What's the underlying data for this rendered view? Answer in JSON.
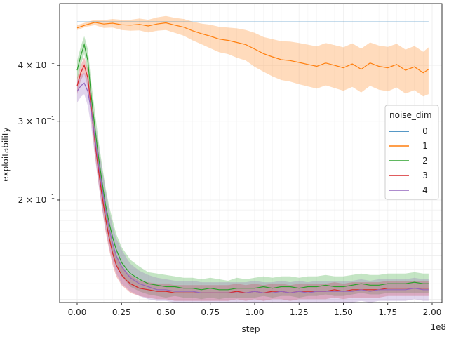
{
  "chart_data": {
    "type": "line",
    "xlabel": "step",
    "ylabel": "exploitability",
    "x_offset_label": "1e8",
    "x_scale": 100000000,
    "xlim": [
      -0.05,
      2.0
    ],
    "ylim": [
      0.118,
      0.55
    ],
    "yscale": "log",
    "grid": true,
    "x_ticks": [
      0.0,
      0.25,
      0.5,
      0.75,
      1.0,
      1.25,
      1.5,
      1.75,
      2.0
    ],
    "x_tick_labels": [
      "0.00",
      "0.25",
      "0.50",
      "0.75",
      "1.00",
      "1.25",
      "1.50",
      "1.75",
      "2.00"
    ],
    "y_ticks": [
      {
        "value": 0.4,
        "mantissa": "4",
        "exp": "−1"
      },
      {
        "value": 0.3,
        "mantissa": "3",
        "exp": "−1"
      },
      {
        "value": 0.2,
        "mantissa": "2",
        "exp": "−1"
      }
    ],
    "legend": {
      "title": "noise_dim",
      "placement": "right"
    },
    "series": [
      {
        "name": "0",
        "color": "#1f77b4",
        "x": [
          0.0,
          1.98
        ],
        "y": [
          0.5,
          0.5
        ],
        "lower": [
          0.5,
          0.5
        ],
        "upper": [
          0.5,
          0.5
        ]
      },
      {
        "name": "1",
        "color": "#ff7f0e",
        "x": [
          0.0,
          0.05,
          0.1,
          0.15,
          0.2,
          0.25,
          0.3,
          0.35,
          0.4,
          0.45,
          0.5,
          0.55,
          0.6,
          0.65,
          0.7,
          0.75,
          0.8,
          0.85,
          0.9,
          0.95,
          1.0,
          1.05,
          1.1,
          1.15,
          1.2,
          1.25,
          1.3,
          1.35,
          1.4,
          1.45,
          1.5,
          1.55,
          1.6,
          1.65,
          1.7,
          1.75,
          1.8,
          1.85,
          1.9,
          1.95,
          1.98
        ],
        "y": [
          0.485,
          0.493,
          0.499,
          0.495,
          0.497,
          0.493,
          0.492,
          0.494,
          0.49,
          0.495,
          0.498,
          0.492,
          0.487,
          0.478,
          0.471,
          0.465,
          0.458,
          0.455,
          0.45,
          0.445,
          0.435,
          0.425,
          0.418,
          0.412,
          0.41,
          0.406,
          0.402,
          0.398,
          0.405,
          0.4,
          0.395,
          0.403,
          0.392,
          0.405,
          0.398,
          0.395,
          0.402,
          0.39,
          0.397,
          0.385,
          0.392
        ],
        "lower": [
          0.48,
          0.488,
          0.492,
          0.485,
          0.486,
          0.48,
          0.478,
          0.479,
          0.474,
          0.478,
          0.48,
          0.473,
          0.466,
          0.455,
          0.446,
          0.437,
          0.428,
          0.424,
          0.416,
          0.41,
          0.397,
          0.387,
          0.378,
          0.371,
          0.368,
          0.363,
          0.359,
          0.355,
          0.361,
          0.356,
          0.351,
          0.358,
          0.348,
          0.36,
          0.353,
          0.35,
          0.357,
          0.346,
          0.352,
          0.341,
          0.345
        ],
        "upper": [
          0.492,
          0.499,
          0.506,
          0.505,
          0.508,
          0.506,
          0.506,
          0.509,
          0.506,
          0.512,
          0.516,
          0.511,
          0.508,
          0.501,
          0.496,
          0.493,
          0.488,
          0.486,
          0.484,
          0.48,
          0.473,
          0.463,
          0.458,
          0.453,
          0.452,
          0.449,
          0.445,
          0.441,
          0.449,
          0.444,
          0.439,
          0.448,
          0.436,
          0.45,
          0.443,
          0.44,
          0.447,
          0.434,
          0.442,
          0.429,
          0.439
        ]
      },
      {
        "name": "2",
        "color": "#2ca02c",
        "x": [
          0.0,
          0.02,
          0.04,
          0.06,
          0.08,
          0.1,
          0.12,
          0.14,
          0.16,
          0.18,
          0.2,
          0.22,
          0.25,
          0.28,
          0.3,
          0.35,
          0.4,
          0.45,
          0.5,
          0.55,
          0.6,
          0.65,
          0.7,
          0.75,
          0.8,
          0.85,
          0.9,
          0.95,
          1.0,
          1.05,
          1.1,
          1.15,
          1.2,
          1.25,
          1.3,
          1.35,
          1.4,
          1.45,
          1.5,
          1.55,
          1.6,
          1.65,
          1.7,
          1.75,
          1.8,
          1.85,
          1.9,
          1.95,
          1.98
        ],
        "y": [
          0.39,
          0.42,
          0.445,
          0.41,
          0.34,
          0.29,
          0.25,
          0.22,
          0.195,
          0.178,
          0.165,
          0.155,
          0.145,
          0.14,
          0.137,
          0.133,
          0.13,
          0.129,
          0.128,
          0.128,
          0.127,
          0.127,
          0.126,
          0.127,
          0.126,
          0.126,
          0.127,
          0.127,
          0.127,
          0.128,
          0.127,
          0.128,
          0.128,
          0.127,
          0.128,
          0.128,
          0.129,
          0.128,
          0.128,
          0.129,
          0.13,
          0.129,
          0.129,
          0.13,
          0.13,
          0.13,
          0.131,
          0.13,
          0.13
        ],
        "lower": [
          0.37,
          0.4,
          0.425,
          0.385,
          0.315,
          0.265,
          0.228,
          0.2,
          0.178,
          0.163,
          0.152,
          0.143,
          0.135,
          0.131,
          0.128,
          0.125,
          0.123,
          0.122,
          0.121,
          0.122,
          0.121,
          0.121,
          0.12,
          0.121,
          0.12,
          0.121,
          0.121,
          0.121,
          0.121,
          0.122,
          0.121,
          0.122,
          0.122,
          0.121,
          0.122,
          0.122,
          0.123,
          0.122,
          0.122,
          0.123,
          0.124,
          0.123,
          0.123,
          0.124,
          0.124,
          0.124,
          0.124,
          0.124,
          0.124
        ],
        "upper": [
          0.41,
          0.44,
          0.465,
          0.435,
          0.365,
          0.315,
          0.272,
          0.24,
          0.213,
          0.194,
          0.18,
          0.168,
          0.157,
          0.151,
          0.147,
          0.142,
          0.138,
          0.137,
          0.136,
          0.135,
          0.134,
          0.134,
          0.133,
          0.134,
          0.133,
          0.132,
          0.134,
          0.133,
          0.134,
          0.135,
          0.134,
          0.135,
          0.135,
          0.134,
          0.135,
          0.135,
          0.136,
          0.135,
          0.135,
          0.136,
          0.137,
          0.136,
          0.136,
          0.137,
          0.137,
          0.137,
          0.138,
          0.137,
          0.137
        ]
      },
      {
        "name": "3",
        "color": "#d62728",
        "x": [
          0.0,
          0.02,
          0.04,
          0.06,
          0.08,
          0.1,
          0.12,
          0.14,
          0.16,
          0.18,
          0.2,
          0.22,
          0.25,
          0.28,
          0.3,
          0.35,
          0.4,
          0.45,
          0.5,
          0.55,
          0.6,
          0.65,
          0.7,
          0.75,
          0.8,
          0.85,
          0.9,
          0.95,
          1.0,
          1.05,
          1.1,
          1.15,
          1.2,
          1.25,
          1.3,
          1.35,
          1.4,
          1.45,
          1.5,
          1.55,
          1.6,
          1.65,
          1.7,
          1.75,
          1.8,
          1.85,
          1.9,
          1.95,
          1.98
        ],
        "y": [
          0.36,
          0.385,
          0.4,
          0.375,
          0.32,
          0.27,
          0.233,
          0.205,
          0.182,
          0.165,
          0.152,
          0.143,
          0.136,
          0.132,
          0.13,
          0.127,
          0.126,
          0.125,
          0.125,
          0.124,
          0.124,
          0.124,
          0.124,
          0.124,
          0.124,
          0.124,
          0.125,
          0.124,
          0.125,
          0.124,
          0.125,
          0.125,
          0.124,
          0.125,
          0.125,
          0.125,
          0.125,
          0.126,
          0.125,
          0.126,
          0.126,
          0.126,
          0.126,
          0.127,
          0.127,
          0.127,
          0.127,
          0.127,
          0.127
        ],
        "lower": [
          0.345,
          0.37,
          0.383,
          0.358,
          0.302,
          0.253,
          0.218,
          0.192,
          0.17,
          0.155,
          0.143,
          0.135,
          0.129,
          0.126,
          0.124,
          0.122,
          0.121,
          0.12,
          0.12,
          0.119,
          0.119,
          0.119,
          0.119,
          0.119,
          0.119,
          0.119,
          0.12,
          0.119,
          0.12,
          0.119,
          0.12,
          0.12,
          0.119,
          0.12,
          0.12,
          0.12,
          0.12,
          0.121,
          0.12,
          0.121,
          0.121,
          0.121,
          0.121,
          0.122,
          0.122,
          0.122,
          0.122,
          0.122,
          0.122
        ],
        "upper": [
          0.375,
          0.4,
          0.417,
          0.392,
          0.338,
          0.287,
          0.248,
          0.218,
          0.194,
          0.175,
          0.161,
          0.151,
          0.143,
          0.138,
          0.136,
          0.132,
          0.131,
          0.13,
          0.13,
          0.129,
          0.129,
          0.129,
          0.129,
          0.129,
          0.129,
          0.129,
          0.13,
          0.129,
          0.13,
          0.129,
          0.13,
          0.13,
          0.129,
          0.13,
          0.13,
          0.13,
          0.13,
          0.131,
          0.13,
          0.131,
          0.131,
          0.131,
          0.131,
          0.132,
          0.132,
          0.132,
          0.132,
          0.132,
          0.132
        ]
      },
      {
        "name": "4",
        "color": "#9467bd",
        "x": [
          0.0,
          0.02,
          0.04,
          0.06,
          0.08,
          0.1,
          0.12,
          0.14,
          0.16,
          0.18,
          0.2,
          0.22,
          0.25,
          0.28,
          0.3,
          0.35,
          0.4,
          0.45,
          0.5,
          0.55,
          0.6,
          0.65,
          0.7,
          0.75,
          0.8,
          0.85,
          0.9,
          0.95,
          1.0,
          1.05,
          1.1,
          1.15,
          1.2,
          1.25,
          1.3,
          1.35,
          1.4,
          1.45,
          1.5,
          1.55,
          1.6,
          1.65,
          1.7,
          1.75,
          1.8,
          1.85,
          1.9,
          1.95,
          1.98
        ],
        "y": [
          0.35,
          0.36,
          0.365,
          0.35,
          0.315,
          0.275,
          0.24,
          0.213,
          0.19,
          0.173,
          0.16,
          0.15,
          0.142,
          0.137,
          0.134,
          0.13,
          0.128,
          0.126,
          0.126,
          0.125,
          0.125,
          0.125,
          0.124,
          0.124,
          0.124,
          0.124,
          0.124,
          0.124,
          0.125,
          0.124,
          0.124,
          0.125,
          0.124,
          0.125,
          0.124,
          0.125,
          0.125,
          0.125,
          0.125,
          0.125,
          0.126,
          0.125,
          0.126,
          0.126,
          0.126,
          0.126,
          0.127,
          0.126,
          0.126
        ],
        "lower": [
          0.33,
          0.34,
          0.345,
          0.325,
          0.29,
          0.25,
          0.217,
          0.192,
          0.172,
          0.157,
          0.146,
          0.137,
          0.13,
          0.127,
          0.125,
          0.122,
          0.12,
          0.119,
          0.119,
          0.118,
          0.118,
          0.118,
          0.118,
          0.118,
          0.118,
          0.118,
          0.118,
          0.118,
          0.118,
          0.118,
          0.118,
          0.118,
          0.118,
          0.118,
          0.118,
          0.118,
          0.118,
          0.118,
          0.118,
          0.118,
          0.119,
          0.118,
          0.119,
          0.119,
          0.119,
          0.119,
          0.12,
          0.119,
          0.119
        ],
        "upper": [
          0.37,
          0.38,
          0.385,
          0.372,
          0.34,
          0.3,
          0.264,
          0.236,
          0.21,
          0.19,
          0.175,
          0.164,
          0.155,
          0.148,
          0.144,
          0.139,
          0.136,
          0.134,
          0.133,
          0.132,
          0.132,
          0.132,
          0.131,
          0.131,
          0.131,
          0.131,
          0.131,
          0.131,
          0.132,
          0.131,
          0.131,
          0.132,
          0.131,
          0.132,
          0.131,
          0.132,
          0.132,
          0.132,
          0.132,
          0.132,
          0.133,
          0.132,
          0.133,
          0.133,
          0.133,
          0.133,
          0.134,
          0.133,
          0.133
        ]
      }
    ]
  }
}
